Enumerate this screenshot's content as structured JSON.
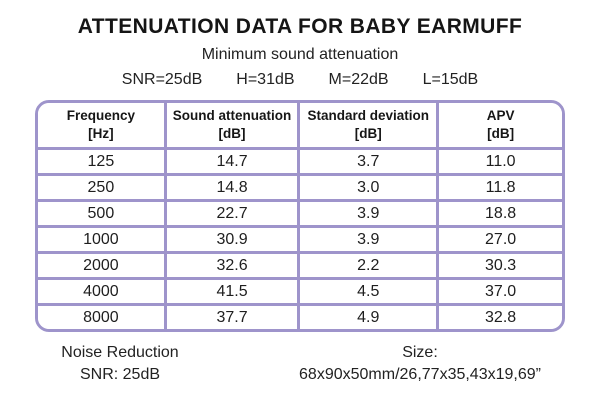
{
  "title": "ATTENUATION DATA FOR BABY EARMUFF",
  "subtitle": "Minimum sound attenuation",
  "snr_line": {
    "snr": "SNR=25dB",
    "h": "H=31dB",
    "m": "M=22dB",
    "l": "L=15dB"
  },
  "table": {
    "columns": [
      {
        "label": "Frequency",
        "unit": "[Hz]"
      },
      {
        "label": "Sound attenuation",
        "unit": "[dB]"
      },
      {
        "label": "Standard deviation",
        "unit": "[dB]"
      },
      {
        "label": "APV",
        "unit": "[dB]"
      }
    ],
    "rows": [
      [
        "125",
        "14.7",
        "3.7",
        "11.0"
      ],
      [
        "250",
        "14.8",
        "3.0",
        "11.8"
      ],
      [
        "500",
        "22.7",
        "3.9",
        "18.8"
      ],
      [
        "1000",
        "30.9",
        "3.9",
        "27.0"
      ],
      [
        "2000",
        "32.6",
        "2.2",
        "30.3"
      ],
      [
        "4000",
        "41.5",
        "4.5",
        "37.0"
      ],
      [
        "8000",
        "37.7",
        "4.9",
        "32.8"
      ]
    ]
  },
  "footer": {
    "noise_reduction_label": "Noise Reduction",
    "noise_reduction_value": "SNR: 25dB",
    "size_label": "Size:",
    "size_value": "68x90x50mm/26,77x35,43x19,69”"
  },
  "colors": {
    "table_border": "#9e94cb",
    "text": "#1e1e1e",
    "background": "#ffffff"
  },
  "chart_data": {
    "type": "table",
    "title": "ATTENUATION DATA FOR BABY EARMUFF",
    "subtitle": "Minimum sound attenuation",
    "summary_values": {
      "SNR": "25dB",
      "H": "31dB",
      "M": "22dB",
      "L": "15dB"
    },
    "columns": [
      "Frequency [Hz]",
      "Sound attenuation [dB]",
      "Standard deviation [dB]",
      "APV [dB]"
    ],
    "categories": [
      125,
      250,
      500,
      1000,
      2000,
      4000,
      8000
    ],
    "series": [
      {
        "name": "Sound attenuation [dB]",
        "values": [
          14.7,
          14.8,
          22.7,
          30.9,
          32.6,
          41.5,
          37.7
        ]
      },
      {
        "name": "Standard deviation [dB]",
        "values": [
          3.7,
          3.0,
          3.9,
          3.9,
          2.2,
          4.5,
          4.9
        ]
      },
      {
        "name": "APV [dB]",
        "values": [
          11.0,
          11.8,
          18.8,
          27.0,
          30.3,
          37.0,
          32.8
        ]
      }
    ],
    "noise_reduction": "SNR: 25dB",
    "size": "68x90x50mm/26,77x35,43x19,69”"
  }
}
